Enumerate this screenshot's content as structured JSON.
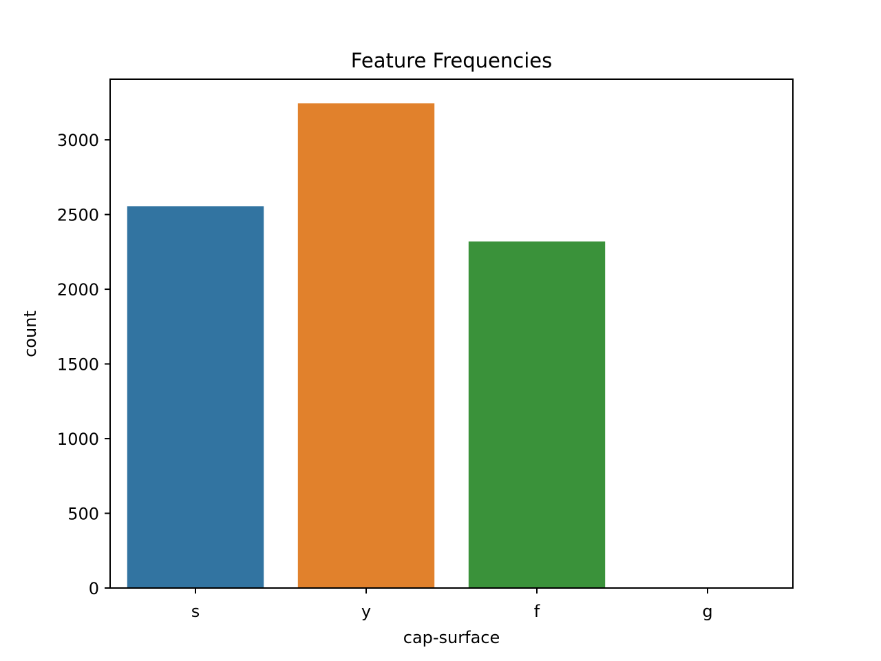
{
  "chart_data": {
    "type": "bar",
    "title": "Feature Frequencies",
    "xlabel": "cap-surface",
    "ylabel": "count",
    "categories": [
      "s",
      "y",
      "f",
      "g"
    ],
    "values": [
      2556,
      3244,
      2320,
      4
    ],
    "colors": [
      "#3274a1",
      "#e1812c",
      "#3a923a",
      "#c03d3e"
    ],
    "ylim": [
      0,
      3406
    ],
    "yticks": [
      0,
      500,
      1000,
      1500,
      2000,
      2500,
      3000
    ],
    "ytick_labels": [
      "0",
      "500",
      "1000",
      "1500",
      "2000",
      "2500",
      "3000"
    ],
    "grid": false,
    "legend": "none"
  }
}
